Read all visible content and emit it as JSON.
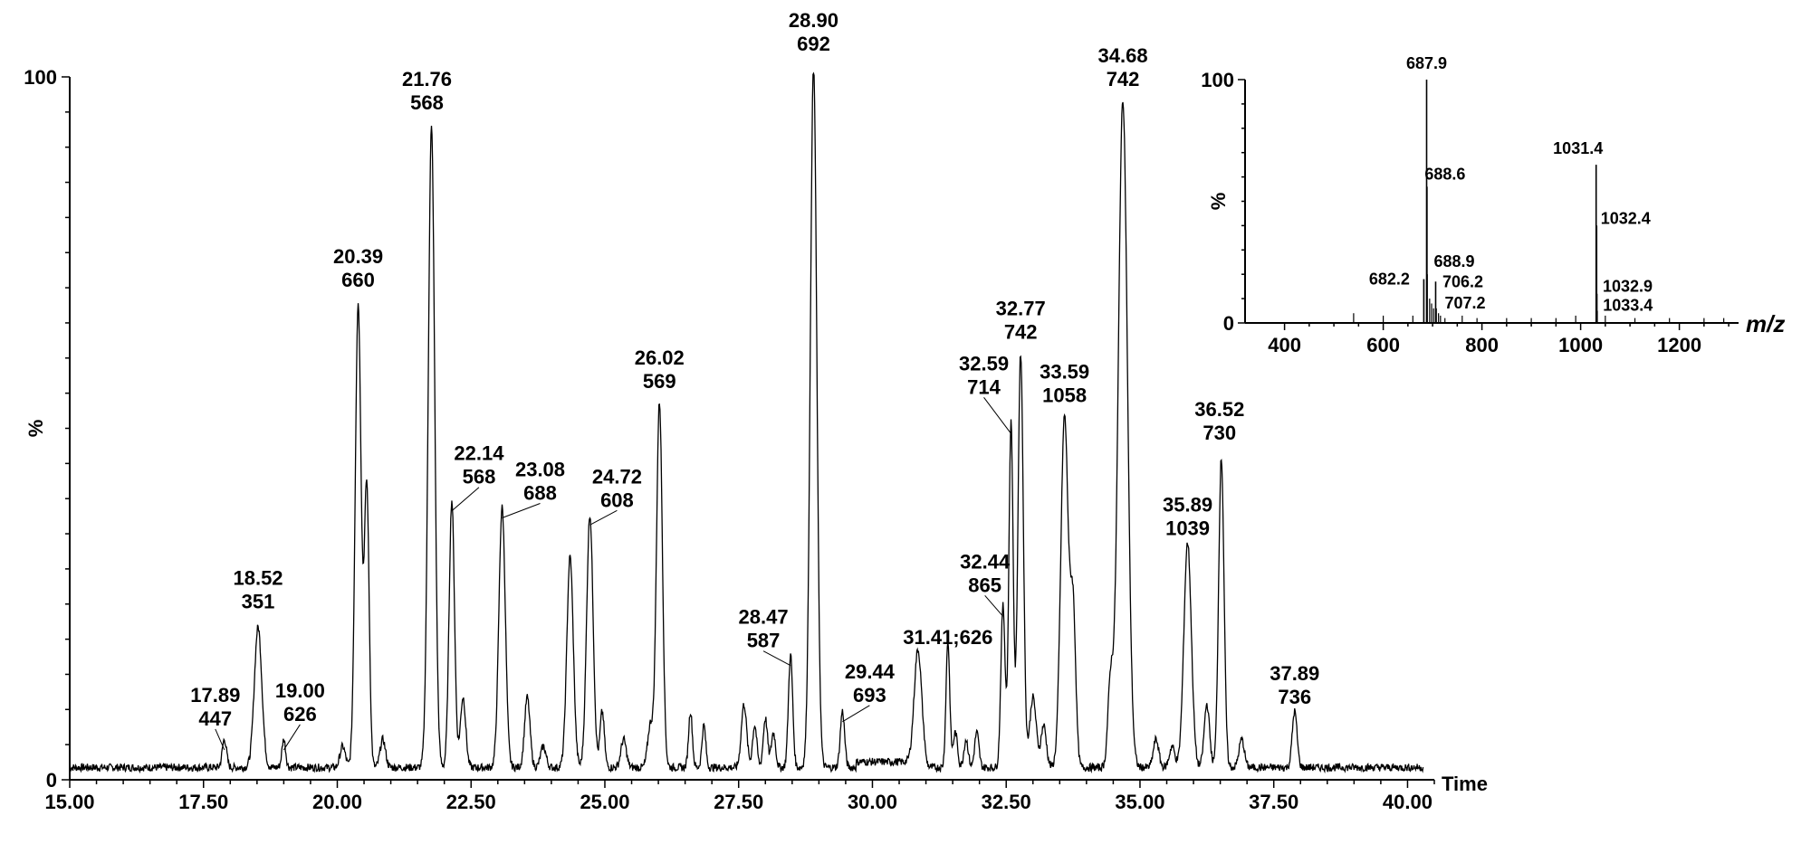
{
  "chart_data": [
    {
      "type": "line",
      "title": "",
      "xlabel": "Time",
      "ylabel": "%",
      "xlim": [
        15.0,
        40.5
      ],
      "ylim": [
        0,
        100
      ],
      "x_ticks": [
        "15.00",
        "17.50",
        "20.00",
        "22.50",
        "25.00",
        "27.50",
        "30.00",
        "32.50",
        "35.00",
        "37.50",
        "40.00"
      ],
      "y_ticks": [
        "0",
        "100"
      ],
      "peaks": [
        {
          "rt": 17.89,
          "mz": 447,
          "intensity": 4,
          "label": "17.89\n447"
        },
        {
          "rt": 18.52,
          "mz": 351,
          "intensity": 20,
          "label": "18.52\n351"
        },
        {
          "rt": 19.0,
          "mz": 626,
          "intensity": 4,
          "label": "19.00\n626"
        },
        {
          "rt": 20.39,
          "mz": 660,
          "intensity": 66,
          "label": "20.39\n660"
        },
        {
          "rt": 21.76,
          "mz": 568,
          "intensity": 91,
          "label": "21.76\n568"
        },
        {
          "rt": 22.14,
          "mz": 568,
          "intensity": 38,
          "label": "22.14\n568"
        },
        {
          "rt": 23.08,
          "mz": 688,
          "intensity": 37,
          "label": "23.08\n688"
        },
        {
          "rt": 24.72,
          "mz": 608,
          "intensity": 36,
          "label": "24.72\n608"
        },
        {
          "rt": 26.02,
          "mz": 569,
          "intensity": 52,
          "label": "26.02\n569"
        },
        {
          "rt": 28.47,
          "mz": 587,
          "intensity": 16,
          "label": "28.47\n587"
        },
        {
          "rt": 28.9,
          "mz": 692,
          "intensity": 100,
          "label": "28.90\n692"
        },
        {
          "rt": 29.44,
          "mz": 693,
          "intensity": 8,
          "label": "29.44\n693"
        },
        {
          "rt": 31.41,
          "mz": 626,
          "intensity": 18,
          "label": "31.41;626"
        },
        {
          "rt": 32.44,
          "mz": 865,
          "intensity": 23,
          "label": "32.44\n865"
        },
        {
          "rt": 32.59,
          "mz": 714,
          "intensity": 49,
          "label": "32.59\n714"
        },
        {
          "rt": 32.77,
          "mz": 742,
          "intensity": 59,
          "label": "32.77\n742"
        },
        {
          "rt": 33.59,
          "mz": 1058,
          "intensity": 50,
          "label": "33.59\n1058"
        },
        {
          "rt": 34.68,
          "mz": 742,
          "intensity": 95,
          "label": "34.68\n742"
        },
        {
          "rt": 35.89,
          "mz": 1039,
          "intensity": 32,
          "label": "35.89\n1039"
        },
        {
          "rt": 36.52,
          "mz": 730,
          "intensity": 44,
          "label": "36.52\n730"
        },
        {
          "rt": 37.89,
          "mz": 736,
          "intensity": 8,
          "label": "37.89\n736"
        }
      ]
    },
    {
      "type": "bar",
      "title": "",
      "xlabel": "m/z",
      "ylabel": "%",
      "xlim": [
        320,
        1320
      ],
      "ylim": [
        0,
        100
      ],
      "x_ticks": [
        "400",
        "600",
        "800",
        "1000",
        "1200"
      ],
      "y_ticks": [
        "0",
        "100"
      ],
      "peaks": [
        {
          "mz": 682.2,
          "intensity": 18,
          "label": "682.2"
        },
        {
          "mz": 687.9,
          "intensity": 100,
          "label": "687.9"
        },
        {
          "mz": 688.6,
          "intensity": 56,
          "label": "688.6"
        },
        {
          "mz": 688.9,
          "intensity": 20,
          "label": "688.9"
        },
        {
          "mz": 706.2,
          "intensity": 17,
          "label": "706.2"
        },
        {
          "mz": 707.2,
          "intensity": 6,
          "label": "707.2"
        },
        {
          "mz": 1031.4,
          "intensity": 65,
          "label": "1031.4"
        },
        {
          "mz": 1032.4,
          "intensity": 40,
          "label": "1032.4"
        },
        {
          "mz": 1032.9,
          "intensity": 12,
          "label": "1032.9"
        },
        {
          "mz": 1033.4,
          "intensity": 5,
          "label": "1033.4"
        }
      ]
    }
  ]
}
